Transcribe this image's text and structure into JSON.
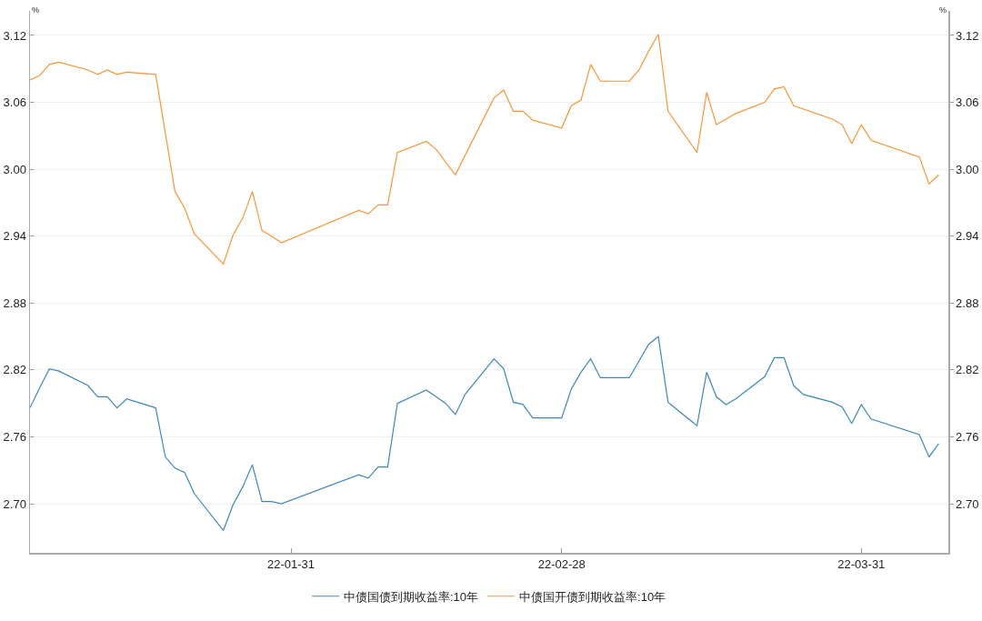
{
  "chart_data": {
    "type": "line",
    "ylabel": "%",
    "y2label": "%",
    "xlim": [
      "--01-04",
      "--04-09"
    ],
    "xticks": [
      {
        "value": "--01-31",
        "label": "22-01-31"
      },
      {
        "value": "--02-28",
        "label": "22-02-28"
      },
      {
        "value": "--03-31",
        "label": "22-03-31"
      }
    ],
    "ylim": [
      2.656,
      3.142
    ],
    "yticks": [
      {
        "value": 2.7,
        "label": "2.70"
      },
      2.76,
      2.82,
      2.88,
      2.94,
      {
        "value": 3.0,
        "label": "3.00"
      },
      3.06,
      3.12
    ],
    "y2lim": [
      2.656,
      3.142
    ],
    "y2ticks": [
      {
        "value": 2.7,
        "label": "2.70"
      },
      2.76,
      2.82,
      2.88,
      2.94,
      {
        "value": 3.0,
        "label": "3.00"
      },
      3.06,
      3.12
    ],
    "grid": "y",
    "legend": "bottom",
    "marker": "none",
    "line_style": "solid",
    "series": [
      {
        "name": "中债国债到期收益率:10年",
        "color": "#3e88b8",
        "x": [
          "--01-04",
          "--01-05",
          "--01-06",
          "--01-07",
          "--01-10",
          "--01-11",
          "--01-12",
          "--01-13",
          "--01-14",
          "--01-17",
          "--01-18",
          "--01-19",
          "--01-20",
          "--01-21",
          "--01-24",
          "--01-25",
          "--01-26",
          "--01-27",
          "--01-28",
          "--01-29",
          "--01-30",
          "--02-07",
          "--02-08",
          "--02-09",
          "--02-10",
          "--02-11",
          "--02-14",
          "--02-15",
          "--02-16",
          "--02-17",
          "--02-18",
          "--02-21",
          "--02-22",
          "--02-23",
          "--02-24",
          "--02-25",
          "--02-28",
          "--03-01",
          "--03-02",
          "--03-03",
          "--03-04",
          "--03-07",
          "--03-09",
          "--03-10",
          "--03-11",
          "--03-14",
          "--03-15",
          "--03-16",
          "--03-17",
          "--03-18",
          "--03-21",
          "--03-22",
          "--03-23",
          "--03-24",
          "--03-25",
          "--03-28",
          "--03-29",
          "--03-30",
          "--03-31",
          "--04-01",
          "--04-06",
          "--04-07",
          "--04-08"
        ],
        "values": [
          2.786,
          2.804,
          2.821,
          2.819,
          2.806,
          2.796,
          2.796,
          2.786,
          2.794,
          2.786,
          2.742,
          2.732,
          2.728,
          2.709,
          2.676,
          2.699,
          2.715,
          2.735,
          2.702,
          2.702,
          2.7,
          2.726,
          2.723,
          2.733,
          2.733,
          2.79,
          2.802,
          2.796,
          2.79,
          2.78,
          2.798,
          2.83,
          2.821,
          2.791,
          2.789,
          2.777,
          2.777,
          2.803,
          2.818,
          2.83,
          2.813,
          2.813,
          2.843,
          2.85,
          2.791,
          2.77,
          2.818,
          2.796,
          2.789,
          2.794,
          2.814,
          2.831,
          2.831,
          2.806,
          2.798,
          2.791,
          2.787,
          2.772,
          2.789,
          2.776,
          2.762,
          2.742,
          2.754
        ]
      },
      {
        "name": "中债国开债到期收益率:10年",
        "color": "#f59638",
        "x": [
          "--01-04",
          "--01-05",
          "--01-06",
          "--01-07",
          "--01-10",
          "--01-11",
          "--01-12",
          "--01-13",
          "--01-14",
          "--01-17",
          "--01-19",
          "--01-20",
          "--01-21",
          "--01-24",
          "--01-25",
          "--01-26",
          "--01-27",
          "--01-28",
          "--01-29",
          "--01-30",
          "--02-07",
          "--02-08",
          "--02-09",
          "--02-10",
          "--02-11",
          "--02-14",
          "--02-15",
          "--02-17",
          "--02-21",
          "--02-22",
          "--02-23",
          "--02-24",
          "--02-25",
          "--02-28",
          "--03-01",
          "--03-02",
          "--03-03",
          "--03-04",
          "--03-07",
          "--03-08",
          "--03-09",
          "--03-10",
          "--03-11",
          "--03-14",
          "--03-15",
          "--03-16",
          "--03-18",
          "--03-21",
          "--03-22",
          "--03-23",
          "--03-24",
          "--03-28",
          "--03-29",
          "--03-30",
          "--03-31",
          "--04-01",
          "--04-06",
          "--04-07",
          "--04-08"
        ],
        "values": [
          3.08,
          3.084,
          3.094,
          3.096,
          3.089,
          3.085,
          3.089,
          3.085,
          3.087,
          3.085,
          2.98,
          2.965,
          2.942,
          2.915,
          2.941,
          2.956,
          2.98,
          2.945,
          2.94,
          2.934,
          2.963,
          2.96,
          2.968,
          2.968,
          3.015,
          3.025,
          3.018,
          2.995,
          3.064,
          3.071,
          3.052,
          3.052,
          3.044,
          3.037,
          3.057,
          3.062,
          3.094,
          3.079,
          3.079,
          3.089,
          3.106,
          3.121,
          3.052,
          3.015,
          3.069,
          3.04,
          3.05,
          3.06,
          3.072,
          3.074,
          3.057,
          3.045,
          3.04,
          3.023,
          3.04,
          3.026,
          3.011,
          2.987,
          2.995
        ]
      }
    ]
  }
}
